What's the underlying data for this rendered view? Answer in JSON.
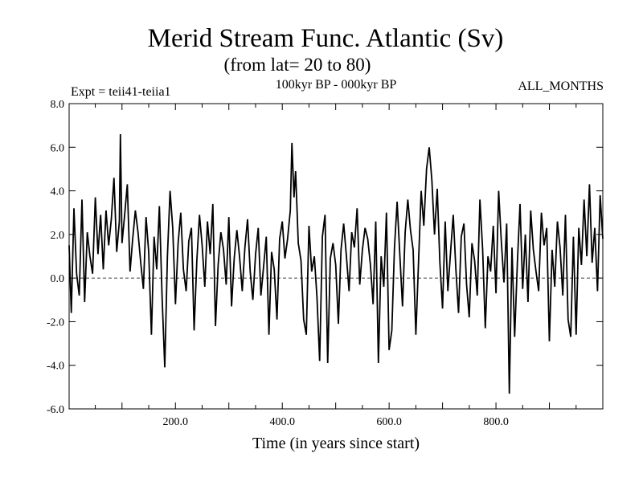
{
  "chart_data": {
    "type": "line",
    "title": "Merid Stream Func. Atlantic (Sv)",
    "subtitle": "(from lat= 20 to 80)",
    "info_left": "Expt = teii41-teiia1",
    "info_center": "100kyr BP - 000kyr BP",
    "info_right": "ALL_MONTHS",
    "xlabel": "Time (in years since start)",
    "ylabel": "",
    "xlim": [
      1,
      1000
    ],
    "ylim": [
      -6.0,
      8.0
    ],
    "x_ticks": [
      {
        "value": 200,
        "label": "200.0"
      },
      {
        "value": 400,
        "label": "400.0"
      },
      {
        "value": 600,
        "label": "600.0"
      },
      {
        "value": 800,
        "label": "800.0"
      }
    ],
    "y_ticks": [
      {
        "value": -6.0,
        "label": "-6.0"
      },
      {
        "value": -4.0,
        "label": "-4.0"
      },
      {
        "value": -2.0,
        "label": "-2.0"
      },
      {
        "value": 0.0,
        "label": "0.0"
      },
      {
        "value": 2.0,
        "label": "2.0"
      },
      {
        "value": 4.0,
        "label": "4.0"
      },
      {
        "value": 6.0,
        "label": "6.0"
      },
      {
        "value": 8.0,
        "label": "8.0"
      }
    ],
    "reference_line": 0.0,
    "grid": false,
    "series": [
      {
        "color": "#000000",
        "x": [
          1,
          5,
          10,
          15,
          20,
          25,
          30,
          35,
          40,
          45,
          50,
          55,
          60,
          65,
          70,
          75,
          80,
          85,
          90,
          95,
          97,
          100,
          105,
          110,
          115,
          120,
          125,
          130,
          135,
          140,
          145,
          150,
          155,
          160,
          165,
          170,
          175,
          180,
          185,
          190,
          195,
          200,
          205,
          210,
          215,
          220,
          225,
          230,
          235,
          240,
          245,
          250,
          255,
          260,
          265,
          270,
          275,
          280,
          285,
          290,
          295,
          300,
          305,
          310,
          315,
          320,
          325,
          330,
          335,
          340,
          345,
          350,
          355,
          360,
          365,
          370,
          375,
          380,
          385,
          390,
          395,
          400,
          405,
          410,
          415,
          418,
          422,
          425,
          430,
          435,
          440,
          445,
          450,
          455,
          460,
          465,
          470,
          475,
          480,
          485,
          490,
          495,
          500,
          505,
          510,
          515,
          520,
          525,
          530,
          535,
          540,
          545,
          550,
          555,
          560,
          565,
          570,
          575,
          580,
          585,
          590,
          595,
          600,
          605,
          610,
          615,
          620,
          625,
          630,
          635,
          640,
          645,
          650,
          655,
          660,
          665,
          670,
          675,
          680,
          685,
          690,
          695,
          700,
          705,
          710,
          715,
          720,
          725,
          730,
          735,
          740,
          745,
          750,
          755,
          760,
          765,
          770,
          775,
          780,
          785,
          790,
          795,
          800,
          805,
          810,
          815,
          820,
          825,
          830,
          835,
          840,
          845,
          850,
          855,
          860,
          865,
          870,
          875,
          880,
          885,
          890,
          895,
          900,
          905,
          910,
          915,
          920,
          925,
          930,
          935,
          940,
          945,
          950,
          955,
          960,
          965,
          970,
          975,
          980,
          985,
          990,
          995,
          1000
        ],
        "y": [
          1.5,
          -1.6,
          3.2,
          0.2,
          -0.8,
          3.6,
          -1.1,
          2.1,
          1.0,
          0.2,
          3.7,
          1.1,
          2.9,
          0.4,
          3.1,
          1.5,
          2.7,
          4.6,
          1.2,
          2.6,
          6.6,
          1.6,
          2.9,
          4.3,
          0.3,
          1.8,
          3.1,
          2.1,
          0.7,
          -0.5,
          2.8,
          1.2,
          -2.6,
          1.9,
          0.4,
          3.3,
          -0.9,
          -4.1,
          1.0,
          4.0,
          2.3,
          -1.2,
          1.6,
          3.0,
          0.4,
          -0.6,
          1.7,
          2.3,
          -2.4,
          0.8,
          2.9,
          1.5,
          -0.4,
          2.6,
          1.1,
          3.4,
          -2.2,
          0.6,
          2.1,
          1.3,
          -0.3,
          2.8,
          -1.3,
          0.9,
          2.2,
          1.0,
          -0.6,
          1.4,
          2.7,
          0.3,
          -1.0,
          1.1,
          2.3,
          -0.8,
          0.5,
          1.9,
          -2.6,
          1.2,
          0.4,
          -1.9,
          1.8,
          2.6,
          0.9,
          1.8,
          3.1,
          6.2,
          3.7,
          4.9,
          1.6,
          0.8,
          -1.9,
          -2.6,
          2.4,
          0.3,
          1.0,
          -0.9,
          -3.8,
          1.9,
          2.9,
          -3.9,
          0.9,
          1.6,
          0.6,
          -2.1,
          1.3,
          2.5,
          1.0,
          -0.6,
          2.1,
          1.4,
          3.2,
          -0.3,
          1.3,
          2.3,
          1.8,
          0.6,
          -1.2,
          2.6,
          -3.9,
          1.0,
          -0.4,
          3.0,
          -3.3,
          -2.4,
          1.4,
          3.5,
          1.1,
          -1.3,
          2.1,
          3.6,
          2.2,
          1.3,
          -2.6,
          0.7,
          4.0,
          2.4,
          5.0,
          6.0,
          4.5,
          2.0,
          4.1,
          0.7,
          -1.4,
          2.6,
          -0.6,
          1.2,
          2.9,
          0.4,
          -1.6,
          1.9,
          2.5,
          -0.3,
          -1.8,
          1.6,
          0.8,
          -0.8,
          3.6,
          1.3,
          -2.3,
          1.0,
          0.3,
          2.4,
          -0.7,
          4.0,
          1.7,
          -0.2,
          2.5,
          -5.3,
          1.4,
          -2.7,
          0.7,
          3.4,
          -0.5,
          2.0,
          -1.1,
          3.1,
          1.3,
          0.3,
          -0.6,
          3.0,
          1.5,
          2.3,
          -2.9,
          1.3,
          -0.4,
          2.6,
          1.4,
          -0.8,
          2.9,
          -1.9,
          -2.7,
          1.9,
          -2.6,
          2.3,
          0.6,
          3.6,
          1.0,
          4.3,
          0.7,
          2.3,
          -0.6,
          3.8,
          1.8
        ]
      }
    ]
  }
}
